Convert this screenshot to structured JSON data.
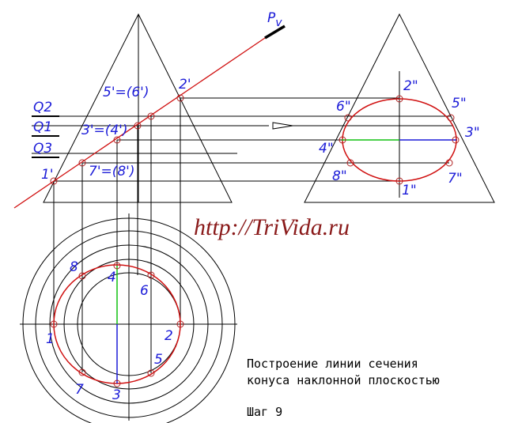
{
  "front_view": {
    "plane": {
      "letter": "P",
      "subscript": "v"
    },
    "levels": [
      "Q2",
      "Q1",
      "Q3"
    ],
    "points": [
      "1'",
      "7'=(8')",
      "3'=(4')",
      "5'=(6')",
      "2'"
    ]
  },
  "profile_view": {
    "points": [
      "2\"",
      "6\"",
      "5\"",
      "4\"",
      "3\"",
      "8\"",
      "7\"",
      "1\""
    ]
  },
  "plan_view": {
    "points": [
      "1",
      "2",
      "3",
      "4",
      "5",
      "6",
      "7",
      "8"
    ]
  },
  "watermark": "http://TriVida.ru",
  "caption": {
    "line1": "Построение линии сечения",
    "line2": "конуса наклонной плоскостью",
    "step": "Шаг 9"
  }
}
